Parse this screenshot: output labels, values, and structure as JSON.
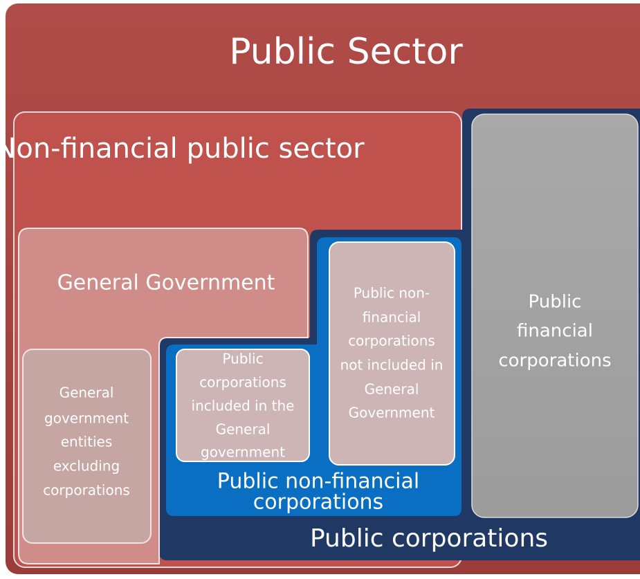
{
  "title": "Public Sector",
  "nodes": [
    {
      "label": [
        "Non-financial public sector"
      ]
    },
    {
      "label": [
        "Public corporations"
      ]
    },
    {
      "label": [
        "General Government"
      ]
    },
    {
      "label": [
        "Public non-financial",
        "corporations"
      ]
    },
    {
      "label": [
        "Public",
        "financial",
        "corporations"
      ]
    },
    {
      "label": [
        "General",
        "government",
        "entities",
        "excluding",
        "corporations"
      ]
    },
    {
      "label": [
        "Public",
        "corporations",
        "included in the",
        "General",
        "government"
      ]
    },
    {
      "label": [
        "Public non-",
        "financial",
        "corporations",
        "not included in",
        "General",
        "Government"
      ]
    }
  ]
}
